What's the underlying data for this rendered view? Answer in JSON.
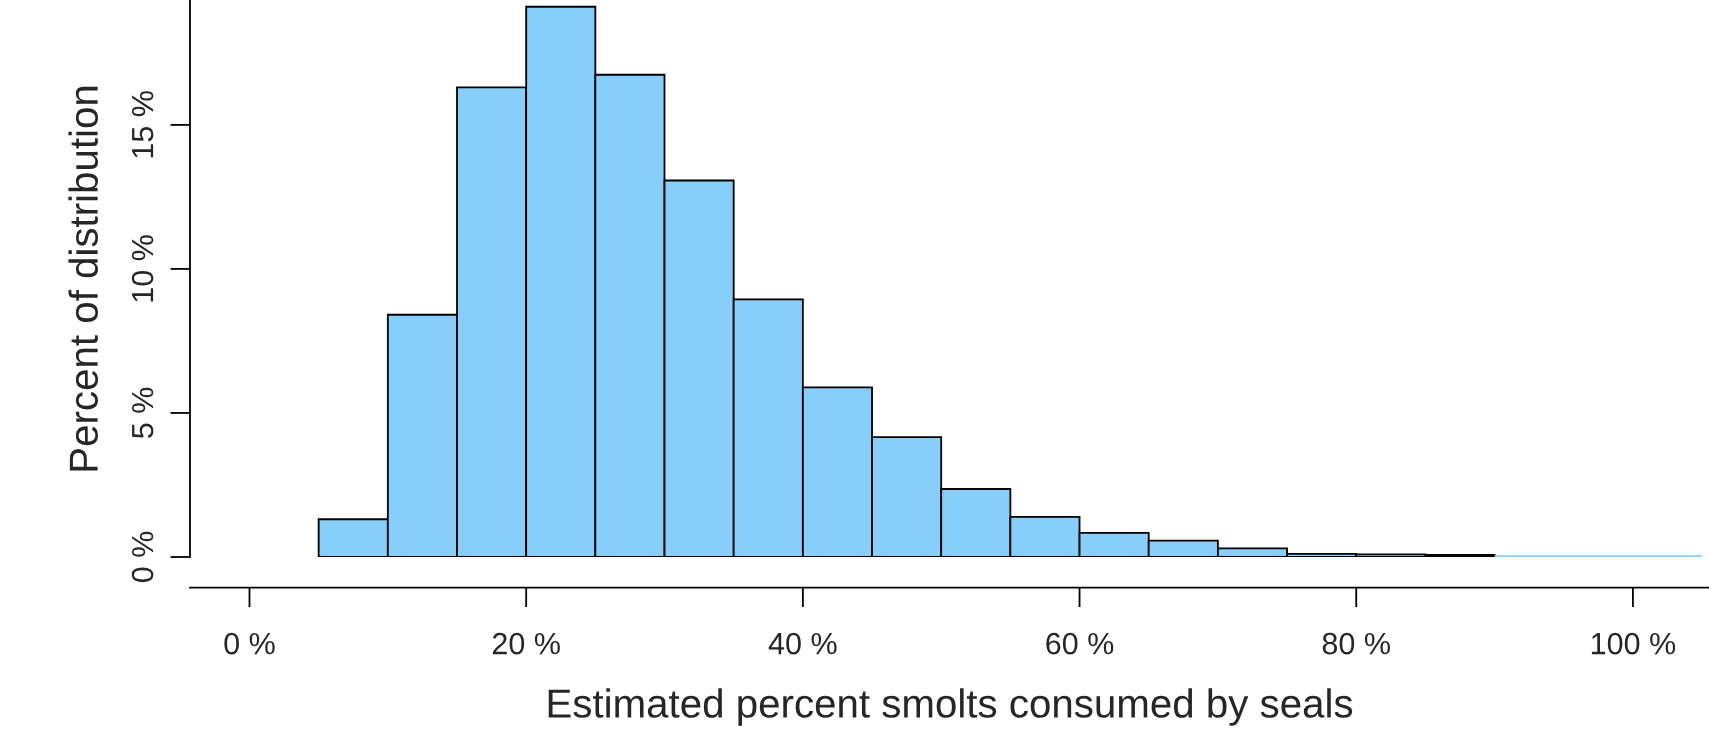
{
  "chart_data": {
    "type": "histogram",
    "xlabel": "Estimated percent smolts consumed by seals",
    "ylabel": "Percent of distribution",
    "bins": [
      5,
      10,
      15,
      20,
      25,
      30,
      35,
      40,
      45,
      50,
      55,
      60,
      65,
      70,
      75,
      80,
      85,
      90,
      95,
      100,
      105
    ],
    "values": [
      1.31,
      8.41,
      16.3,
      19.1,
      16.74,
      13.07,
      8.94,
      5.89,
      4.16,
      2.36,
      1.39,
      0.84,
      0.57,
      0.3,
      0.11,
      0.09,
      0.07,
      0,
      0,
      0
    ],
    "color": "#87cefa",
    "xlim": [
      -4.3,
      105.5
    ],
    "ylim": [
      0,
      19.3
    ],
    "xticks": [
      {
        "value": 0,
        "label": "0 %"
      },
      {
        "value": 20,
        "label": "20 %"
      },
      {
        "value": 40,
        "label": "40 %"
      },
      {
        "value": 60,
        "label": "60 %"
      },
      {
        "value": 80,
        "label": "80 %"
      },
      {
        "value": 100,
        "label": "100 %"
      }
    ],
    "yticks": [
      {
        "value": 0,
        "label": "0 %"
      },
      {
        "value": 5,
        "label": "5 %"
      },
      {
        "value": 10,
        "label": "10 %"
      },
      {
        "value": 15,
        "label": "15 %"
      }
    ],
    "grid": false
  }
}
